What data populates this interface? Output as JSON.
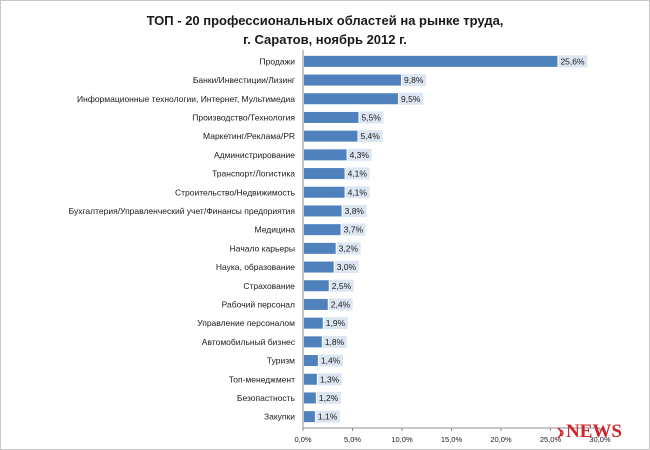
{
  "chart_data": {
    "type": "bar",
    "orientation": "horizontal",
    "title_line1": "ТОП - 20 профессиональных областей на рынке труда,",
    "title_line2": "г. Саратов, ноябрь 2012 г.",
    "categories": [
      "Продажи",
      "Банки/Инвестиции/Лизинг",
      "Информационные технологии, Интернет, Мультимедиа",
      "Производство/Технология",
      "Маркетинг/Реклама/PR",
      "Администрирование",
      "Транспорт/Логистика",
      "Строительство/Недвижимость",
      "Бухгалтерия/Управленческий учет/Финансы предприятия",
      "Медицина",
      "Начало карьеры",
      "Наука, образование",
      "Страхование",
      "Рабочий персонал",
      "Управление персоналом",
      "Автомобильный бизнес",
      "Туризм",
      "Топ-менеджмент",
      "Безопастность",
      "Закупки"
    ],
    "values": [
      25.6,
      9.8,
      9.5,
      5.5,
      5.4,
      4.3,
      4.1,
      4.1,
      3.8,
      3.7,
      3.2,
      3.0,
      2.5,
      2.4,
      1.9,
      1.8,
      1.4,
      1.3,
      1.2,
      1.1
    ],
    "value_labels": [
      "25,6%",
      "9,8%",
      "9,5%",
      "5,5%",
      "5,4%",
      "4,3%",
      "4,1%",
      "4,1%",
      "3,8%",
      "3,7%",
      "3,2%",
      "3,0%",
      "2,5%",
      "2,4%",
      "1,9%",
      "1,8%",
      "1,4%",
      "1,3%",
      "1,2%",
      "1,1%"
    ],
    "x_ticks": [
      0,
      5,
      10,
      15,
      20,
      25,
      30
    ],
    "x_tick_labels": [
      "0,0%",
      "5,0%",
      "10,0%",
      "15,0%",
      "20,0%",
      "25,0%",
      "30,0%"
    ],
    "xlim": [
      0,
      30
    ],
    "grid": false,
    "legend": "none",
    "bar_color": "#4f81bd",
    "label_bg_color": "#dce6f2"
  },
  "watermark": {
    "text": "NEWS",
    "color": "#d2232a"
  }
}
